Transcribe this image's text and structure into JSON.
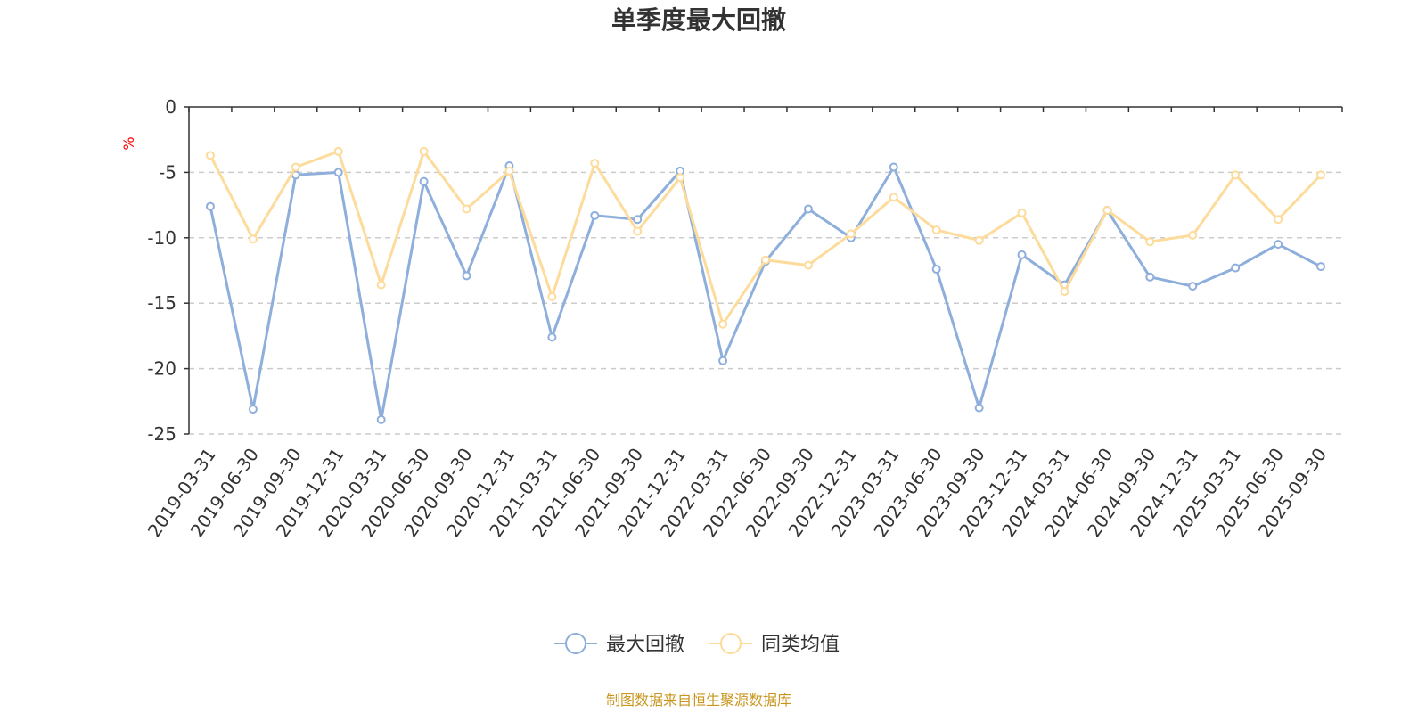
{
  "chart_data": {
    "type": "line",
    "title": "单季度最大回撤",
    "ylabel": "%",
    "xlabel": "",
    "ylim": [
      -25,
      0
    ],
    "yticks": [
      0,
      -5,
      -10,
      -15,
      -20,
      -25
    ],
    "grid": true,
    "legend_position": "bottom-center",
    "categories": [
      "2019-03-31",
      "2019-06-30",
      "2019-09-30",
      "2019-12-31",
      "2020-03-31",
      "2020-06-30",
      "2020-09-30",
      "2020-12-31",
      "2021-03-31",
      "2021-06-30",
      "2021-09-30",
      "2021-12-31",
      "2022-03-31",
      "2022-06-30",
      "2022-09-30",
      "2022-12-31",
      "2023-03-31",
      "2023-06-30",
      "2023-09-30",
      "2023-12-31",
      "2024-03-31",
      "2024-06-30",
      "2024-09-30",
      "2024-12-31",
      "2025-03-31",
      "2025-06-30",
      "2025-09-30"
    ],
    "series": [
      {
        "name": "最大回撤",
        "color": "#8eaedb",
        "values": [
          -7.6,
          -23.1,
          -5.2,
          -5.0,
          -23.9,
          -5.7,
          -12.9,
          -4.5,
          -17.6,
          -8.3,
          -8.6,
          -4.9,
          -19.4,
          -11.8,
          -7.8,
          -10.0,
          -4.6,
          -12.4,
          -23.0,
          -11.3,
          -13.6,
          -7.9,
          -13.0,
          -13.7,
          -12.3,
          -10.5,
          -12.2
        ]
      },
      {
        "name": "同类均值",
        "color": "#fddb9b",
        "values": [
          -3.7,
          -10.1,
          -4.6,
          -3.4,
          -13.6,
          -3.4,
          -7.8,
          -4.9,
          -14.5,
          -4.3,
          -9.5,
          -5.4,
          -16.6,
          -11.7,
          -12.1,
          -9.7,
          -6.9,
          -9.4,
          -10.2,
          -8.1,
          -14.1,
          -7.9,
          -10.3,
          -9.8,
          -5.2,
          -8.6,
          -5.2
        ]
      }
    ]
  },
  "footer": {
    "source": "制图数据来自恒生聚源数据库"
  }
}
